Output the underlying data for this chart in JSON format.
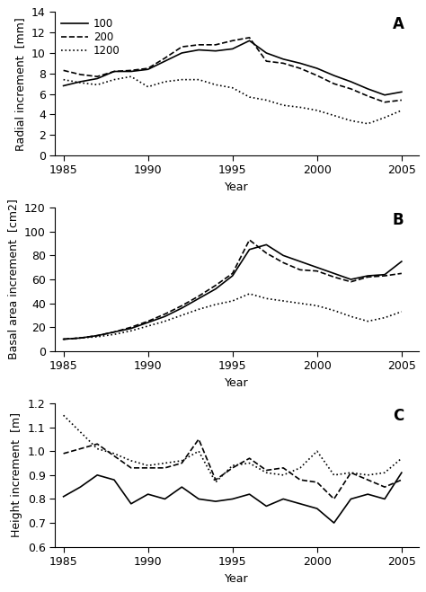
{
  "years": [
    1985,
    1986,
    1987,
    1988,
    1989,
    1990,
    1991,
    1992,
    1993,
    1994,
    1995,
    1996,
    1997,
    1998,
    1999,
    2000,
    2001,
    2002,
    2003,
    2004,
    2005
  ],
  "A_100": [
    6.8,
    7.2,
    7.5,
    8.2,
    8.2,
    8.4,
    9.2,
    10.0,
    10.3,
    10.2,
    10.4,
    11.2,
    10.0,
    9.4,
    9.0,
    8.5,
    7.8,
    7.2,
    6.5,
    5.9,
    6.2
  ],
  "A_200": [
    8.3,
    7.9,
    7.7,
    8.2,
    8.3,
    8.5,
    9.5,
    10.6,
    10.8,
    10.8,
    11.2,
    11.5,
    9.2,
    9.0,
    8.5,
    7.8,
    7.0,
    6.5,
    5.8,
    5.2,
    5.4
  ],
  "A_1200": [
    7.4,
    7.1,
    6.9,
    7.4,
    7.7,
    6.7,
    7.2,
    7.4,
    7.4,
    6.9,
    6.6,
    5.7,
    5.4,
    4.9,
    4.7,
    4.4,
    3.9,
    3.4,
    3.1,
    3.7,
    4.4
  ],
  "B_100": [
    10,
    11,
    13,
    16,
    19,
    24,
    29,
    36,
    44,
    52,
    63,
    85,
    89,
    80,
    75,
    70,
    65,
    60,
    63,
    64,
    75
  ],
  "B_200": [
    10,
    11,
    13,
    16,
    20,
    25,
    31,
    38,
    46,
    55,
    65,
    93,
    82,
    74,
    68,
    67,
    62,
    58,
    62,
    63,
    65
  ],
  "B_1200": [
    10,
    11,
    12,
    14,
    17,
    21,
    25,
    30,
    35,
    39,
    42,
    48,
    44,
    42,
    40,
    38,
    34,
    29,
    25,
    28,
    33
  ],
  "C_100": [
    0.81,
    0.85,
    0.9,
    0.88,
    0.78,
    0.82,
    0.8,
    0.85,
    0.8,
    0.79,
    0.8,
    0.82,
    0.77,
    0.8,
    0.78,
    0.76,
    0.7,
    0.8,
    0.82,
    0.8,
    0.91
  ],
  "C_200": [
    0.99,
    1.01,
    1.03,
    0.98,
    0.93,
    0.93,
    0.93,
    0.95,
    1.05,
    0.88,
    0.93,
    0.97,
    0.92,
    0.93,
    0.88,
    0.87,
    0.8,
    0.91,
    0.88,
    0.85,
    0.88
  ],
  "C_1200": [
    1.15,
    1.08,
    1.01,
    0.99,
    0.96,
    0.94,
    0.95,
    0.96,
    1.0,
    0.87,
    0.94,
    0.95,
    0.91,
    0.9,
    0.93,
    1.0,
    0.9,
    0.91,
    0.9,
    0.91,
    0.97
  ],
  "A_ylabel": "Radial increment  [mm]",
  "B_ylabel": "Basal area increment  [cm2]",
  "C_ylabel": "Height increment  [m]",
  "xlabel": "Year",
  "A_ylim": [
    0,
    14
  ],
  "B_ylim": [
    0,
    120
  ],
  "C_ylim": [
    0.6,
    1.2
  ],
  "A_yticks": [
    0,
    2,
    4,
    6,
    8,
    10,
    12,
    14
  ],
  "B_yticks": [
    0,
    20,
    40,
    60,
    80,
    100,
    120
  ],
  "C_yticks": [
    0.6,
    0.7,
    0.8,
    0.9,
    1.0,
    1.1,
    1.2
  ],
  "C_yticklabels": [
    "0.6",
    "0.7",
    "0.8",
    "0.9",
    "1.0",
    "1.1",
    "1.2"
  ],
  "xlim": [
    1984.5,
    2006.0
  ],
  "xticks": [
    1985,
    1990,
    1995,
    2000,
    2005
  ],
  "legend_labels": [
    "100",
    "200",
    "1200"
  ],
  "panel_labels": [
    "A",
    "B",
    "C"
  ],
  "line_styles": [
    "-",
    "--",
    ":"
  ],
  "line_color": "black",
  "line_width": 1.2,
  "tick_fontsize": 9,
  "label_fontsize": 9,
  "panel_label_fontsize": 12
}
